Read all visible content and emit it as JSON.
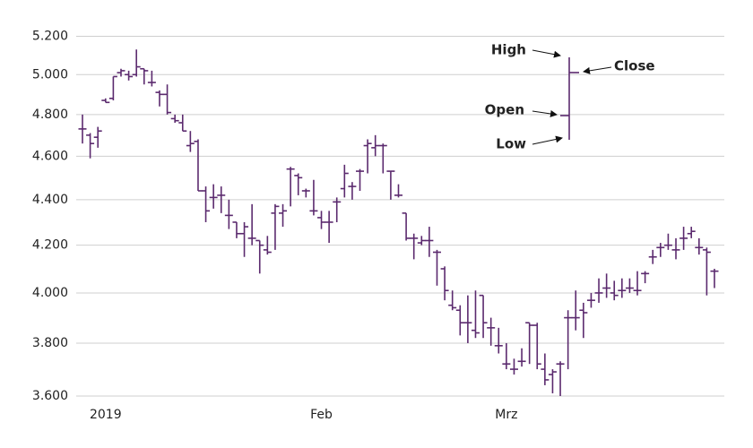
{
  "chart_data": {
    "type": "ohlc",
    "color": "#5b2a6e",
    "log_scale": true,
    "grid": true,
    "categories": [
      null,
      null,
      null,
      "2019",
      null,
      null,
      null,
      null,
      null,
      null,
      null,
      null,
      null,
      null,
      null,
      null,
      null,
      null,
      null,
      null,
      null,
      null,
      null,
      null,
      null,
      null,
      null,
      null,
      null,
      null,
      null,
      "Feb",
      null,
      null,
      null,
      null,
      null,
      null,
      null,
      null,
      null,
      null,
      null,
      null,
      null,
      null,
      null,
      null,
      null,
      null,
      null,
      null,
      null,
      null,
      null,
      "Mrz",
      null,
      null,
      null,
      null,
      null,
      null,
      null,
      null,
      null,
      null,
      null,
      null,
      null,
      null,
      null,
      null,
      null,
      null,
      null,
      null,
      null,
      null,
      null,
      null,
      null,
      null,
      null
    ],
    "open": [
      4730,
      4700,
      4690,
      4870,
      4880,
      5010,
      5000,
      5000,
      5030,
      4960,
      4910,
      4900,
      4780,
      4760,
      4650,
      4670,
      4440,
      4410,
      4420,
      4330,
      4300,
      4250,
      4230,
      4220,
      4180,
      4340,
      4340,
      4540,
      4510,
      4440,
      4350,
      4320,
      4300,
      4390,
      4450,
      4460,
      4530,
      4650,
      4640,
      4650,
      4530,
      4420,
      4340,
      4230,
      4210,
      4220,
      4170,
      4100,
      3950,
      3930,
      3880,
      3850,
      3990,
      3860,
      3790,
      3720,
      3700,
      3730,
      3880,
      3870,
      3700,
      3680,
      3720,
      3900,
      3900,
      3930,
      3970,
      4000,
      4020,
      4000,
      4010,
      4020,
      4010,
      4080,
      4150,
      4190,
      4200,
      4180,
      4230,
      4250,
      4190,
      4180,
      4090
    ],
    "high": [
      4800,
      4710,
      4740,
      4880,
      4990,
      5030,
      5020,
      5130,
      5030,
      5020,
      4920,
      4950,
      4800,
      4800,
      4720,
      4680,
      4460,
      4470,
      4460,
      4400,
      4300,
      4300,
      4380,
      4220,
      4240,
      4380,
      4380,
      4550,
      4520,
      4450,
      4490,
      4350,
      4350,
      4410,
      4560,
      4480,
      4540,
      4680,
      4700,
      4660,
      4530,
      4470,
      4340,
      4250,
      4240,
      4280,
      4180,
      4110,
      4010,
      3950,
      3990,
      4010,
      3990,
      3900,
      3860,
      3800,
      3740,
      3780,
      3880,
      3880,
      3760,
      3700,
      3730,
      3930,
      4010,
      3960,
      4000,
      4060,
      4080,
      4050,
      4060,
      4060,
      4090,
      4090,
      4180,
      4210,
      4250,
      4230,
      4280,
      4280,
      4230,
      4190,
      4100
    ],
    "low": [
      4660,
      4590,
      4640,
      4860,
      4870,
      4990,
      4970,
      4990,
      4950,
      4940,
      4840,
      4800,
      4760,
      4720,
      4620,
      4440,
      4300,
      4360,
      4340,
      4270,
      4230,
      4150,
      4200,
      4080,
      4160,
      4180,
      4280,
      4370,
      4420,
      4410,
      4330,
      4270,
      4210,
      4300,
      4410,
      4400,
      4440,
      4520,
      4600,
      4520,
      4400,
      4410,
      4220,
      4140,
      4200,
      4150,
      4030,
      3970,
      3930,
      3830,
      3800,
      3820,
      3820,
      3790,
      3760,
      3700,
      3680,
      3710,
      3720,
      3700,
      3640,
      3610,
      3600,
      3700,
      3850,
      3820,
      3940,
      3960,
      3980,
      3970,
      3980,
      4000,
      3990,
      4040,
      4120,
      4150,
      4180,
      4140,
      4180,
      4230,
      4160,
      3990,
      4020
    ],
    "close": [
      4730,
      4660,
      4720,
      4860,
      4990,
      5020,
      4990,
      5040,
      5020,
      4960,
      4900,
      4810,
      4770,
      4720,
      4660,
      4440,
      4350,
      4410,
      4420,
      4330,
      4250,
      4280,
      4230,
      4200,
      4170,
      4370,
      4350,
      4540,
      4500,
      4440,
      4350,
      4300,
      4300,
      4390,
      4520,
      4460,
      4530,
      4660,
      4650,
      4650,
      4530,
      4420,
      4230,
      4230,
      4220,
      4220,
      4170,
      4010,
      3940,
      3880,
      3880,
      3840,
      3880,
      3860,
      3790,
      3720,
      3700,
      3730,
      3870,
      3720,
      3660,
      3690,
      3720,
      3900,
      3900,
      3920,
      3970,
      4000,
      4020,
      3990,
      4010,
      4020,
      4010,
      4080,
      4150,
      4190,
      4200,
      4180,
      4230,
      4260,
      4190,
      4170,
      4090
    ],
    "ylim": [
      3600,
      5250
    ],
    "yticks": [
      {
        "value": 3600,
        "label": "3.600"
      },
      {
        "value": 3800,
        "label": "3.800"
      },
      {
        "value": 4000,
        "label": "4.000"
      },
      {
        "value": 4200,
        "label": "4.200"
      },
      {
        "value": 4400,
        "label": "4.400"
      },
      {
        "value": 4600,
        "label": "4.600"
      },
      {
        "value": 4800,
        "label": "4.800"
      },
      {
        "value": 5000,
        "label": "5.000"
      },
      {
        "value": 5200,
        "label": "5.200"
      }
    ],
    "annotations": {
      "high": "High",
      "close": "Close",
      "open": "Open",
      "low": "Low"
    }
  }
}
